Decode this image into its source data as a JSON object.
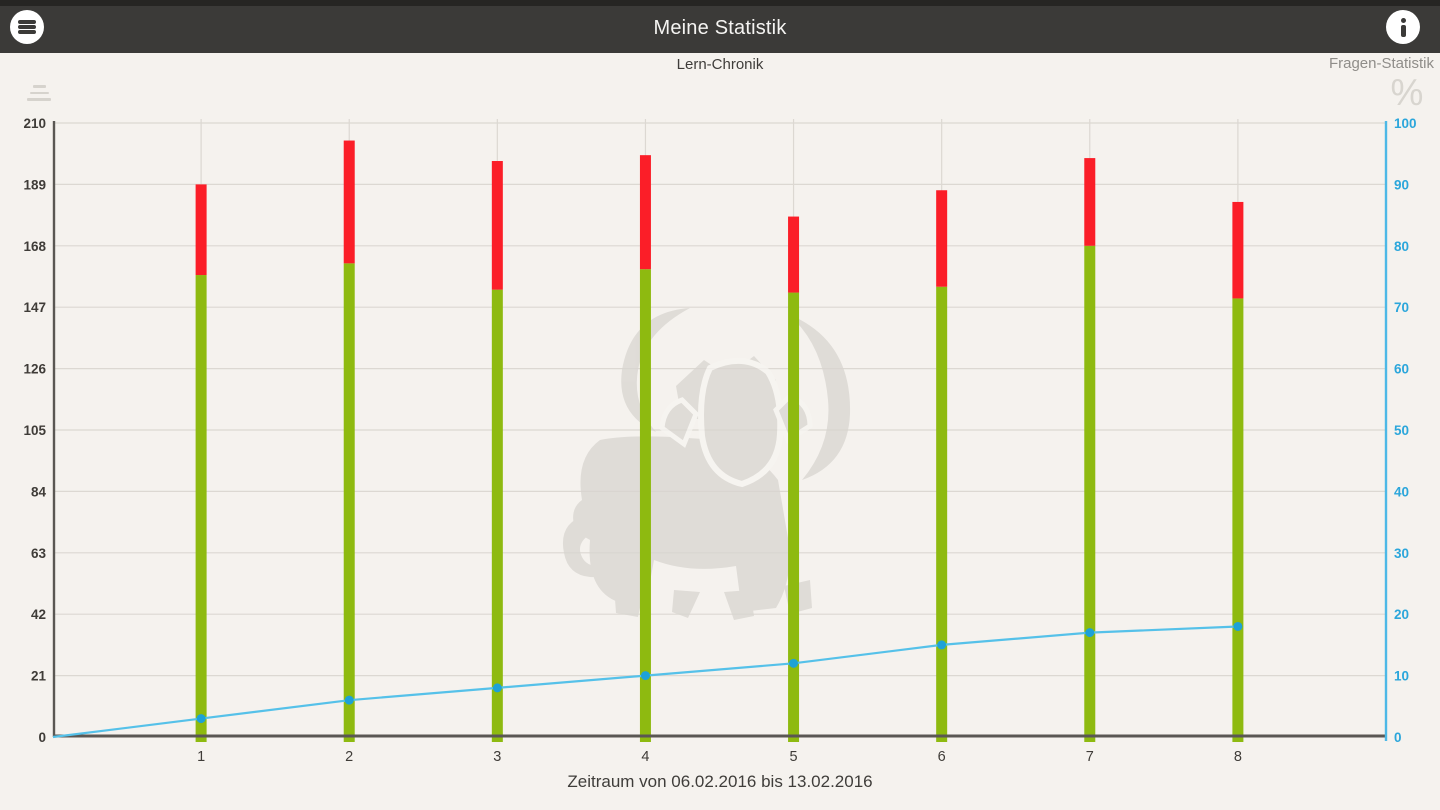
{
  "app": {
    "title": "Meine Statistik"
  },
  "header": {
    "menu_icon": "hamburger-menu-icon",
    "info_icon": "info-icon"
  },
  "subheader": {
    "left_chart_label": "Lern-Chronik",
    "right_chart_label": "Fragen-Statistik",
    "percent_symbol": "%"
  },
  "footer": {
    "period_label": "Zeitraum von 06.02.2016 bis 13.02.2016"
  },
  "colors": {
    "background": "#f5f2ee",
    "appbar": "#3b3a38",
    "green_bar": "#8eba10",
    "red_bar": "#fb1e28",
    "line_blue": "#55c1e9",
    "marker_blue": "#1ea2d7",
    "right_axis_blue": "#4cb8e6",
    "right_axis_text": "#2ba6db",
    "axis_dark": "#5a5753",
    "gridline": "#dcd8d2",
    "axis_text_dark": "#3f3c38",
    "watermark_grey": "#d8d5d0"
  },
  "chart_data": {
    "type": "bar",
    "title": "Lern-Chronik",
    "subtitle_right": "Fragen-Statistik",
    "categories": [
      "1",
      "2",
      "3",
      "4",
      "5",
      "6",
      "7",
      "8"
    ],
    "series": [
      {
        "name": "green",
        "type": "bar",
        "stacked": true,
        "color": "#8eba10",
        "values": [
          158,
          162,
          153,
          160,
          152,
          154,
          168,
          150
        ]
      },
      {
        "name": "red",
        "type": "bar",
        "stacked": true,
        "color": "#fb1e28",
        "values": [
          31,
          42,
          44,
          39,
          26,
          33,
          30,
          33
        ]
      }
    ],
    "bar_totals": [
      189,
      204,
      197,
      199,
      178,
      187,
      198,
      183
    ],
    "line_series": {
      "name": "Fragen-Statistik",
      "type": "line",
      "axis": "right",
      "color": "#55c1e9",
      "marker_color": "#1ea2d7",
      "start_value": 0,
      "values": [
        3,
        6,
        8,
        10,
        12,
        15,
        17,
        18
      ]
    },
    "left_axis": {
      "min": 0,
      "max": 210,
      "step": 21,
      "ticks": [
        "0",
        "21",
        "42",
        "63",
        "84",
        "105",
        "126",
        "147",
        "168",
        "189",
        "210"
      ]
    },
    "right_axis": {
      "min": 0,
      "max": 100,
      "step": 10,
      "unit": "%",
      "ticks": [
        "0",
        "10",
        "20",
        "30",
        "40",
        "50",
        "60",
        "70",
        "80",
        "90",
        "100"
      ]
    },
    "grid": true,
    "legend_position": "none",
    "xlabel": "Zeitraum von 06.02.2016 bis 13.02.2016",
    "ylabel_left": "",
    "ylabel_right": "%"
  }
}
